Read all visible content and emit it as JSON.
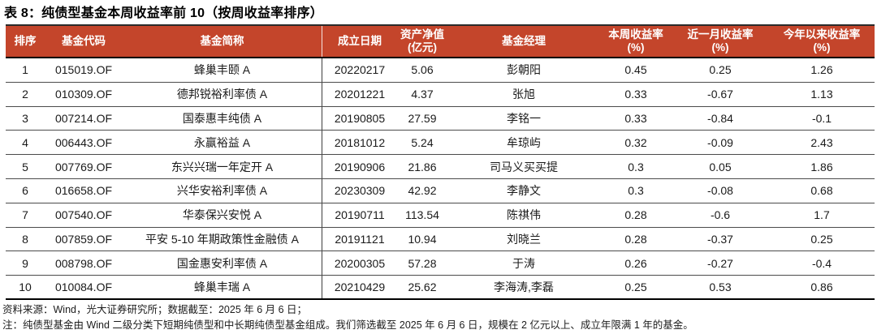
{
  "title": "表 8：纯债型基金本周收益率前 10（按周收益率排序）",
  "colors": {
    "header_bg": "#C4452B",
    "header_text": "#FFFFFF"
  },
  "table": {
    "columns": [
      "排序",
      "基金代码",
      "基金简称",
      "成立日期",
      "资产净值\n(亿元)",
      "基金经理",
      "本周收益率\n(%)",
      "近一月收益率\n(%)",
      "今年以来收益率\n(%)"
    ],
    "rows": [
      {
        "rank": "1",
        "code": "015019.OF",
        "name": "蜂巢丰颐 A",
        "inception": "20220217",
        "nav": "5.06",
        "manager": "彭朝阳",
        "week_return": "0.45",
        "month_return": "0.25",
        "ytd_return": "1.26"
      },
      {
        "rank": "2",
        "code": "010309.OF",
        "name": "德邦锐裕利率债 A",
        "inception": "20201221",
        "nav": "4.37",
        "manager": "张旭",
        "week_return": "0.33",
        "month_return": "-0.67",
        "ytd_return": "1.13"
      },
      {
        "rank": "3",
        "code": "007214.OF",
        "name": "国泰惠丰纯债 A",
        "inception": "20190805",
        "nav": "27.59",
        "manager": "李铭一",
        "week_return": "0.33",
        "month_return": "-0.84",
        "ytd_return": "-0.1"
      },
      {
        "rank": "4",
        "code": "006443.OF",
        "name": "永赢裕益 A",
        "inception": "20181012",
        "nav": "5.24",
        "manager": "牟琼屿",
        "week_return": "0.32",
        "month_return": "-0.09",
        "ytd_return": "2.43"
      },
      {
        "rank": "5",
        "code": "007769.OF",
        "name": "东兴兴瑞一年定开 A",
        "inception": "20190906",
        "nav": "21.86",
        "manager": "司马义买买提",
        "week_return": "0.3",
        "month_return": "0.05",
        "ytd_return": "1.86"
      },
      {
        "rank": "6",
        "code": "016658.OF",
        "name": "兴华安裕利率债 A",
        "inception": "20230309",
        "nav": "42.92",
        "manager": "李静文",
        "week_return": "0.3",
        "month_return": "-0.08",
        "ytd_return": "0.68"
      },
      {
        "rank": "7",
        "code": "007540.OF",
        "name": "华泰保兴安悦 A",
        "inception": "20190711",
        "nav": "113.54",
        "manager": "陈祺伟",
        "week_return": "0.28",
        "month_return": "-0.6",
        "ytd_return": "1.7"
      },
      {
        "rank": "8",
        "code": "007859.OF",
        "name": "平安 5-10 年期政策性金融债 A",
        "inception": "20191121",
        "nav": "10.94",
        "manager": "刘晓兰",
        "week_return": "0.28",
        "month_return": "-0.37",
        "ytd_return": "0.25"
      },
      {
        "rank": "9",
        "code": "008798.OF",
        "name": "国金惠安利率债 A",
        "inception": "20200305",
        "nav": "57.28",
        "manager": "于涛",
        "week_return": "0.26",
        "month_return": "-0.27",
        "ytd_return": "-0.4"
      },
      {
        "rank": "10",
        "code": "010084.OF",
        "name": "蜂巢丰瑞 A",
        "inception": "20210429",
        "nav": "25.62",
        "manager": "李海涛,李磊",
        "week_return": "0.25",
        "month_return": "0.53",
        "ytd_return": "0.86"
      }
    ]
  },
  "footnotes": {
    "source": "资料来源：Wind，光大证券研究所；数据截至：2025 年 6 月 6 日；",
    "note": "注：纯债型基金由 Wind 二级分类下短期纯债型和中长期纯债型基金组成。我们筛选截至 2025 年 6 月 6 日，规模在 2 亿元以上、成立年限满 1 年的基金。"
  }
}
